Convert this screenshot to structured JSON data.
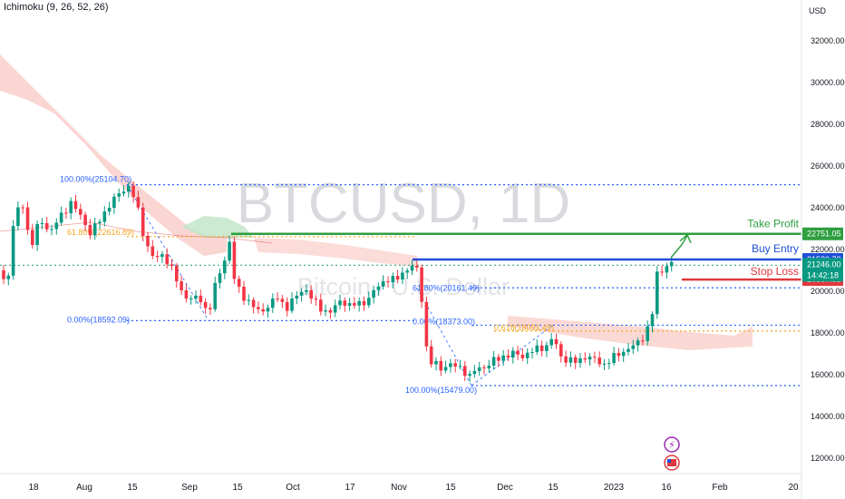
{
  "indicator": "Ichimoku (9, 26, 52, 26)",
  "currency": "USD",
  "watermark": {
    "symbol": "BTCUSD, 1D",
    "name": "Bitcoin / U.S. Dollar"
  },
  "colors": {
    "up": "#089981",
    "down": "#f23645",
    "take_profit": "#2e9e3f",
    "buy_entry": "#1f4fd6",
    "stop_loss": "#e0383e",
    "fib": "#2962ff",
    "cloud_red": "#f8c4bf",
    "cloud_green": "#bfe5c6"
  },
  "chart_data": {
    "type": "candlestick",
    "title": "BTCUSD, 1D",
    "ylim": [
      10500,
      34000
    ],
    "y_ticks": [
      "12000.00",
      "14000.00",
      "16000.00",
      "18000.00",
      "20000.00",
      "22000.00",
      "24000.00",
      "26000.00",
      "28000.00",
      "30000.00",
      "32000.00"
    ],
    "x_ticks": [
      "18",
      "Aug",
      "15",
      "Sep",
      "15",
      "Oct",
      "17",
      "Nov",
      "15",
      "Dec",
      "15",
      "2023",
      "16",
      "Feb",
      "20"
    ],
    "trade_levels": [
      {
        "label": "Take Profit",
        "price": "22751.05",
        "value": 22751.05,
        "color": "#2e9e3f"
      },
      {
        "label": "Buy Entry",
        "price": "21520.73",
        "value": 21520.73,
        "color": "#1f4fd6"
      },
      {
        "label": "Stop Loss",
        "price": "20557.88",
        "value": 20557.88,
        "color": "#e0383e"
      }
    ],
    "last_price": {
      "price": "21246.00",
      "countdown": "14:42:18",
      "value": 21246.0
    },
    "fib_labels": [
      {
        "text": "100.00%(25104.70)",
        "value": 25104.7
      },
      {
        "text": "61.80%(22616.89)",
        "value": 22616.89
      },
      {
        "text": "0.00%(18592.09)",
        "value": 18592.09
      },
      {
        "text": "61.80%(20161.49)",
        "value": 20161.49
      },
      {
        "text": "0.00%(18373.00)",
        "value": 18373.0
      },
      {
        "text": "100.00%(15479.00)",
        "value": 15479.0
      },
      {
        "text": "0.618(18091.49)",
        "value": 18091.49
      }
    ]
  }
}
